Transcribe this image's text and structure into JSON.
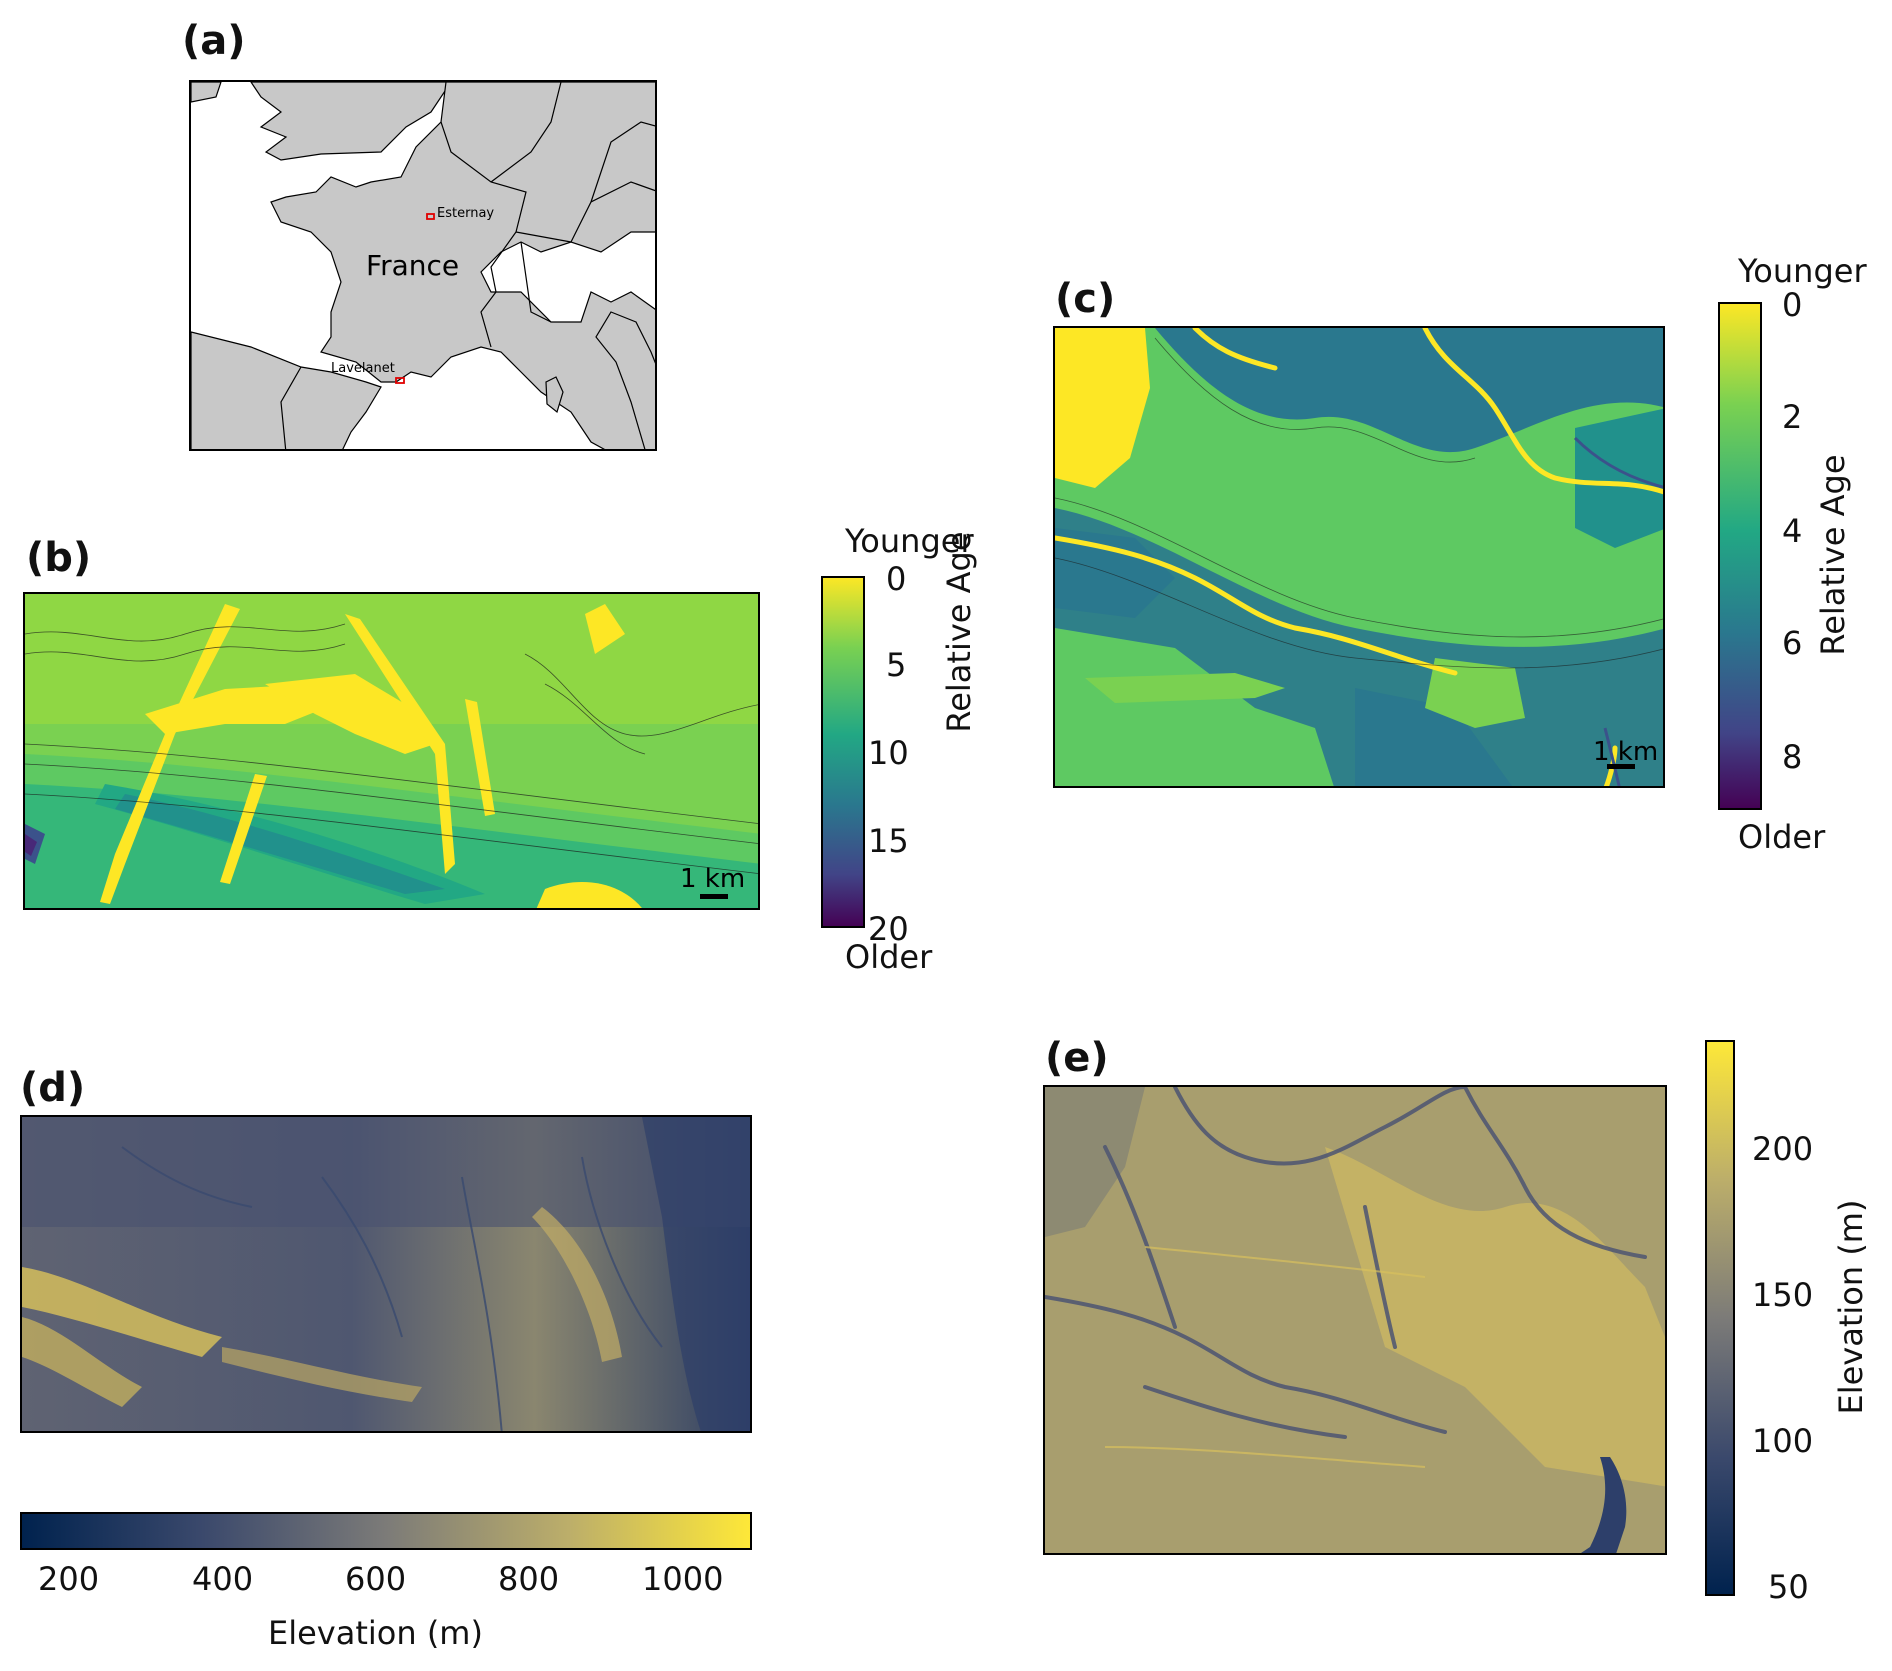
{
  "panels": {
    "a": {
      "label": "(a)",
      "country": "France",
      "sites": [
        "Esternay",
        "Lavelanet"
      ],
      "colors": {
        "land": "#c8c8c8",
        "sea": "#ffffff",
        "site_box": "#e00000"
      }
    },
    "b": {
      "label": "(b)",
      "scale_bar": "1 km",
      "colorbar": {
        "title": "Relative Age",
        "top_label": "Younger",
        "bottom_label": "Older",
        "ticks": [
          "0",
          "5",
          "10",
          "15",
          "20"
        ],
        "range": [
          0,
          20
        ],
        "colormap": "viridis reversed"
      }
    },
    "c": {
      "label": "(c)",
      "scale_bar": "1 km",
      "colorbar": {
        "title": "Relative Age",
        "top_label": "Younger",
        "bottom_label": "Older",
        "ticks": [
          "0",
          "2",
          "4",
          "6",
          "8"
        ],
        "range": [
          0,
          9
        ],
        "colormap": "viridis reversed"
      }
    },
    "d": {
      "label": "(d)",
      "colorbar": {
        "title": "Elevation (m)",
        "ticks": [
          "200",
          "400",
          "600",
          "800",
          "1000"
        ],
        "range": [
          130,
          1085
        ],
        "colormap": "cividis",
        "orientation": "horizontal"
      }
    },
    "e": {
      "label": "(e)",
      "colorbar": {
        "title": "Elevation (m)",
        "ticks": [
          "200",
          "150",
          "100",
          "50"
        ],
        "range": [
          45,
          235
        ],
        "colormap": "cividis",
        "orientation": "vertical"
      }
    }
  }
}
